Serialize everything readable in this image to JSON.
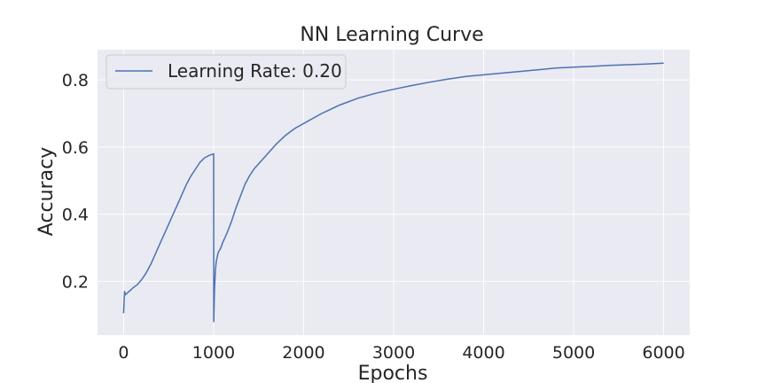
{
  "chart_data": {
    "type": "line",
    "title": "NN Learning Curve",
    "xlabel": "Epochs",
    "ylabel": "Accuracy",
    "xlim": [
      -290,
      6290
    ],
    "ylim": [
      0.04,
      0.89
    ],
    "xticks": [
      0,
      1000,
      2000,
      3000,
      4000,
      5000,
      6000
    ],
    "yticks": [
      0.2,
      0.4,
      0.6,
      0.8
    ],
    "grid": true,
    "legend_position": "top-left",
    "series": [
      {
        "name": "Learning Rate: 0.20",
        "color": "#4c72b0",
        "x": [
          0,
          10,
          20,
          40,
          60,
          80,
          100,
          150,
          200,
          250,
          300,
          350,
          400,
          450,
          500,
          550,
          600,
          650,
          700,
          750,
          800,
          850,
          900,
          950,
          1000,
          1001,
          1010,
          1020,
          1030,
          1050,
          1080,
          1100,
          1150,
          1200,
          1250,
          1300,
          1350,
          1400,
          1450,
          1500,
          1600,
          1700,
          1800,
          1900,
          2000,
          2200,
          2400,
          2600,
          2800,
          3000,
          3200,
          3400,
          3600,
          3800,
          4000,
          4200,
          4400,
          4600,
          4800,
          5000,
          5200,
          5400,
          5600,
          5800,
          6000
        ],
        "y": [
          0.105,
          0.17,
          0.16,
          0.165,
          0.17,
          0.175,
          0.18,
          0.19,
          0.205,
          0.225,
          0.25,
          0.28,
          0.31,
          0.34,
          0.37,
          0.4,
          0.43,
          0.46,
          0.49,
          0.515,
          0.535,
          0.555,
          0.568,
          0.575,
          0.58,
          0.08,
          0.18,
          0.235,
          0.26,
          0.285,
          0.3,
          0.315,
          0.345,
          0.38,
          0.42,
          0.455,
          0.49,
          0.515,
          0.535,
          0.55,
          0.58,
          0.61,
          0.635,
          0.655,
          0.67,
          0.7,
          0.725,
          0.745,
          0.76,
          0.772,
          0.783,
          0.793,
          0.802,
          0.81,
          0.815,
          0.82,
          0.825,
          0.83,
          0.835,
          0.838,
          0.84,
          0.843,
          0.845,
          0.847,
          0.85
        ]
      }
    ]
  }
}
